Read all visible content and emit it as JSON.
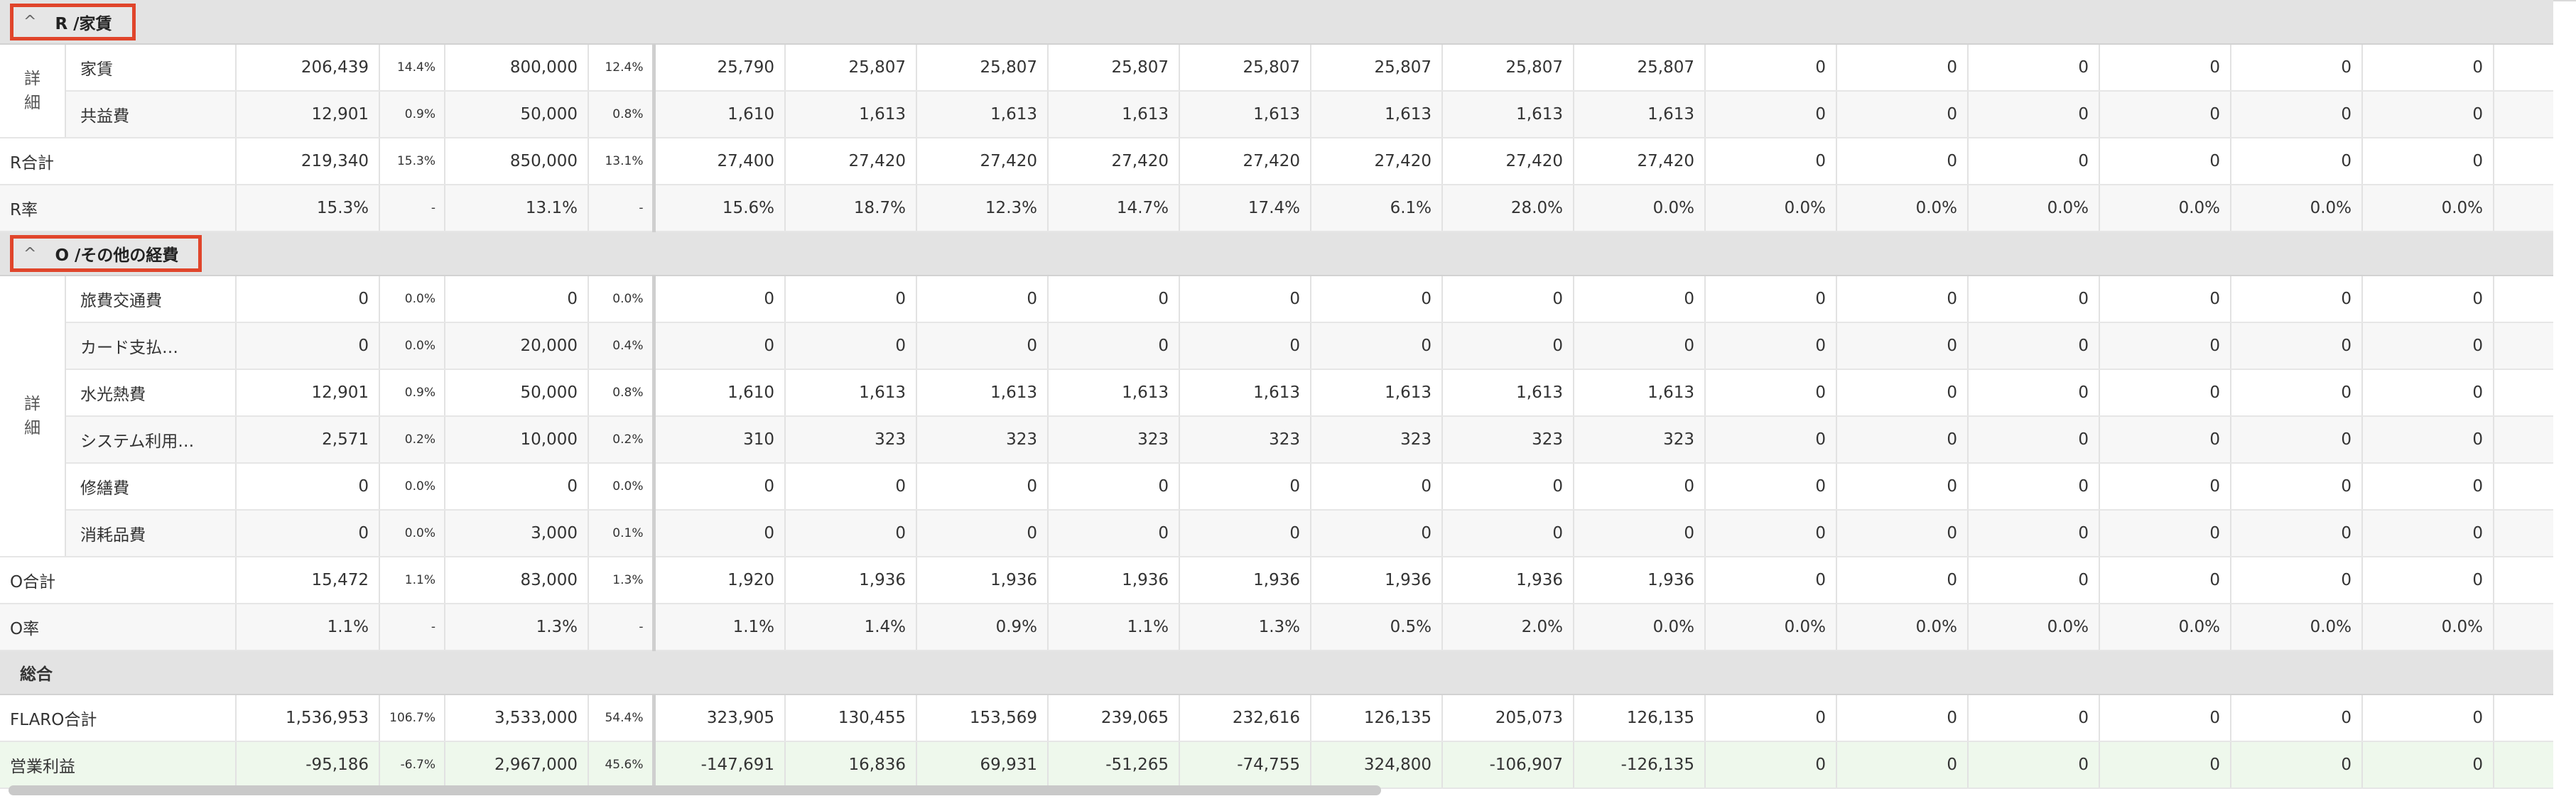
{
  "section_r": {
    "chevron": "^",
    "title": "R /家賃",
    "group_label": "詳\n細",
    "rows": [
      {
        "label": "家賃",
        "v": [
          "206,439",
          "14.4%",
          "800,000",
          "12.4%",
          "25,790",
          "25,807",
          "25,807",
          "25,807",
          "25,807",
          "25,807",
          "25,807",
          "25,807",
          "0",
          "0",
          "0",
          "0",
          "0",
          "0"
        ]
      },
      {
        "label": "共益費",
        "v": [
          "12,901",
          "0.9%",
          "50,000",
          "0.8%",
          "1,610",
          "1,613",
          "1,613",
          "1,613",
          "1,613",
          "1,613",
          "1,613",
          "1,613",
          "0",
          "0",
          "0",
          "0",
          "0",
          "0"
        ]
      }
    ],
    "total": {
      "label": "R合計",
      "v": [
        "219,340",
        "15.3%",
        "850,000",
        "13.1%",
        "27,400",
        "27,420",
        "27,420",
        "27,420",
        "27,420",
        "27,420",
        "27,420",
        "27,420",
        "0",
        "0",
        "0",
        "0",
        "0",
        "0"
      ]
    },
    "rate": {
      "label": "R率",
      "v": [
        "15.3%",
        "-",
        "13.1%",
        "-",
        "15.6%",
        "18.7%",
        "12.3%",
        "14.7%",
        "17.4%",
        "6.1%",
        "28.0%",
        "0.0%",
        "0.0%",
        "0.0%",
        "0.0%",
        "0.0%",
        "0.0%",
        "0.0%"
      ]
    }
  },
  "section_o": {
    "chevron": "^",
    "title": "O /その他の経費",
    "group_label": "詳\n細",
    "rows": [
      {
        "label": "旅費交通費",
        "v": [
          "0",
          "0.0%",
          "0",
          "0.0%",
          "0",
          "0",
          "0",
          "0",
          "0",
          "0",
          "0",
          "0",
          "0",
          "0",
          "0",
          "0",
          "0",
          "0"
        ]
      },
      {
        "label": "カード支払…",
        "v": [
          "0",
          "0.0%",
          "20,000",
          "0.4%",
          "0",
          "0",
          "0",
          "0",
          "0",
          "0",
          "0",
          "0",
          "0",
          "0",
          "0",
          "0",
          "0",
          "0"
        ]
      },
      {
        "label": "水光熱費",
        "v": [
          "12,901",
          "0.9%",
          "50,000",
          "0.8%",
          "1,610",
          "1,613",
          "1,613",
          "1,613",
          "1,613",
          "1,613",
          "1,613",
          "1,613",
          "0",
          "0",
          "0",
          "0",
          "0",
          "0"
        ]
      },
      {
        "label": "システム利用…",
        "v": [
          "2,571",
          "0.2%",
          "10,000",
          "0.2%",
          "310",
          "323",
          "323",
          "323",
          "323",
          "323",
          "323",
          "323",
          "0",
          "0",
          "0",
          "0",
          "0",
          "0"
        ]
      },
      {
        "label": "修繕費",
        "v": [
          "0",
          "0.0%",
          "0",
          "0.0%",
          "0",
          "0",
          "0",
          "0",
          "0",
          "0",
          "0",
          "0",
          "0",
          "0",
          "0",
          "0",
          "0",
          "0"
        ]
      },
      {
        "label": "消耗品費",
        "v": [
          "0",
          "0.0%",
          "3,000",
          "0.1%",
          "0",
          "0",
          "0",
          "0",
          "0",
          "0",
          "0",
          "0",
          "0",
          "0",
          "0",
          "0",
          "0",
          "0"
        ]
      }
    ],
    "total": {
      "label": "O合計",
      "v": [
        "15,472",
        "1.1%",
        "83,000",
        "1.3%",
        "1,920",
        "1,936",
        "1,936",
        "1,936",
        "1,936",
        "1,936",
        "1,936",
        "1,936",
        "0",
        "0",
        "0",
        "0",
        "0",
        "0"
      ]
    },
    "rate": {
      "label": "O率",
      "v": [
        "1.1%",
        "-",
        "1.3%",
        "-",
        "1.1%",
        "1.4%",
        "0.9%",
        "1.1%",
        "1.3%",
        "0.5%",
        "2.0%",
        "0.0%",
        "0.0%",
        "0.0%",
        "0.0%",
        "0.0%",
        "0.0%",
        "0.0%"
      ]
    }
  },
  "section_total": {
    "title": "総合",
    "flaro": {
      "label": "FLARO合計",
      "v": [
        "1,536,953",
        "106.7%",
        "3,533,000",
        "54.4%",
        "323,905",
        "130,455",
        "153,569",
        "239,065",
        "232,616",
        "126,135",
        "205,073",
        "126,135",
        "0",
        "0",
        "0",
        "0",
        "0",
        "0"
      ]
    },
    "profit": {
      "label": "営業利益",
      "v": [
        "-95,186",
        "-6.7%",
        "2,967,000",
        "45.6%",
        "-147,691",
        "16,836",
        "69,931",
        "-51,265",
        "-74,755",
        "324,800",
        "-106,907",
        "-126,135",
        "0",
        "0",
        "0",
        "0",
        "0",
        "0"
      ]
    }
  }
}
